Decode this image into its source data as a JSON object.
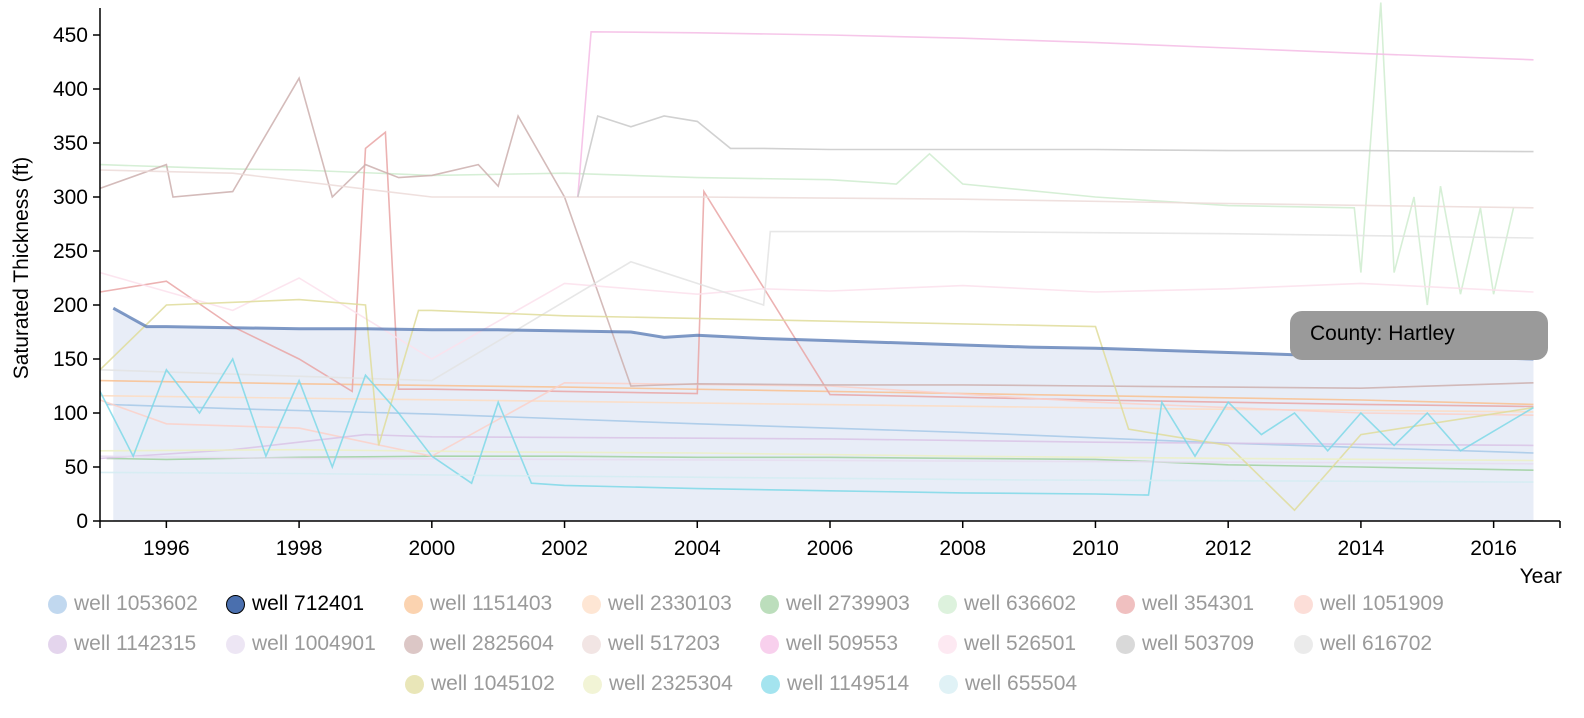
{
  "chart_data": {
    "type": "line",
    "xlabel": "Year",
    "ylabel": "Saturated Thickness (ft)",
    "xlim": [
      1995.0,
      2017.0
    ],
    "ylim": [
      0,
      475
    ],
    "x_ticks": [
      "1996",
      "1998",
      "2000",
      "2002",
      "2004",
      "2006",
      "2008",
      "2010",
      "2012",
      "2014",
      "2016"
    ],
    "y_ticks": [
      "0",
      "50",
      "100",
      "150",
      "200",
      "250",
      "300",
      "350",
      "400",
      "450"
    ],
    "highlighted_series": "well 712401",
    "legend_position": "bottom",
    "series": [
      {
        "name": "well 1053602",
        "color": "#a6c8e8",
        "x": [
          1995.1,
          1997.0,
          2000.0,
          2004.0,
          2008.0,
          2012.0,
          2016.6
        ],
        "values": [
          108,
          104,
          99,
          90,
          82,
          72,
          63
        ]
      },
      {
        "name": "well 712401",
        "color": "#4a6fae",
        "x": [
          1995.2,
          1995.7,
          1996.0,
          1997.0,
          1998.0,
          1999.0,
          2000.0,
          2001.0,
          2002.0,
          2003.0,
          2003.5,
          2004.0,
          2005.0,
          2006.0,
          2007.0,
          2008.0,
          2009.0,
          2010.0,
          2011.0,
          2012.0,
          2013.0,
          2014.0,
          2015.0,
          2016.0,
          2016.6
        ],
        "values": [
          197,
          180,
          180,
          179,
          178,
          178,
          177,
          177,
          176,
          175,
          170,
          172,
          169,
          167,
          165,
          163,
          161,
          160,
          158,
          156,
          154,
          153,
          152,
          151,
          150
        ]
      },
      {
        "name": "well 1151403",
        "color": "#f9c08f",
        "x": [
          1995.0,
          1998.0,
          2002.0,
          2006.0,
          2010.0,
          2014.0,
          2016.6
        ],
        "values": [
          130,
          127,
          124,
          120,
          116,
          112,
          108
        ]
      },
      {
        "name": "well 2330103",
        "color": "#fddcc2",
        "x": [
          1995.0,
          1999.0,
          2003.0,
          2007.0,
          2011.0,
          2016.6
        ],
        "values": [
          116,
          113,
          110,
          107,
          104,
          101
        ]
      },
      {
        "name": "well 2739903",
        "color": "#9fd09f",
        "x": [
          1995.1,
          1996.0,
          1998.0,
          2000.0,
          2002.0,
          2004.0,
          2006.0,
          2008.0,
          2010.0,
          2012.0,
          2014.0,
          2016.6
        ],
        "values": [
          58,
          57,
          59,
          60,
          60,
          59,
          59,
          58,
          57,
          52,
          50,
          47
        ]
      },
      {
        "name": "well 636602",
        "color": "#cfeccf",
        "x": [
          1995.0,
          1996.0,
          1997.0,
          1998.0,
          2000.0,
          2002.0,
          2004.0,
          2006.0,
          2007.0,
          2007.5,
          2008.0,
          2010.0,
          2012.0,
          2013.9,
          2014.0,
          2014.3,
          2014.5,
          2014.8,
          2015.0,
          2015.2,
          2015.5,
          2015.8,
          2016.0,
          2016.3
        ],
        "values": [
          330,
          328,
          326,
          325,
          320,
          322,
          318,
          316,
          312,
          340,
          312,
          300,
          292,
          290,
          230,
          480,
          230,
          300,
          200,
          310,
          210,
          290,
          210,
          290
        ]
      },
      {
        "name": "well 354301",
        "color": "#e9a5a5",
        "x": [
          1995.0,
          1996.0,
          1997.0,
          1998.0,
          1998.8,
          1999.0,
          1999.3,
          1999.5,
          2000.0,
          2002.0,
          2004.0,
          2004.1,
          2006.0,
          2010.0,
          2014.0,
          2016.6
        ],
        "values": [
          212,
          222,
          180,
          150,
          120,
          345,
          360,
          122,
          122,
          120,
          118,
          305,
          117,
          112,
          108,
          106
        ]
      },
      {
        "name": "well 1051909",
        "color": "#fbd0c8",
        "x": [
          1995.0,
          1996.0,
          1998.0,
          2000.0,
          2002.0,
          2006.0,
          2010.0,
          2014.0,
          2016.6
        ],
        "values": [
          112,
          90,
          86,
          60,
          128,
          125,
          110,
          100,
          98
        ]
      },
      {
        "name": "well 1142315",
        "color": "#d9c3e6",
        "x": [
          1995.0,
          1997.0,
          1999.0,
          2000.0,
          2003.0,
          2006.0,
          2010.0,
          2014.0,
          2016.6
        ],
        "values": [
          58,
          66,
          80,
          78,
          77,
          76,
          73,
          71,
          70
        ]
      },
      {
        "name": "well 1004901",
        "color": "#e6dcf0",
        "x": [
          1995.0,
          1998.0,
          2002.0,
          2006.0,
          2010.0,
          2014.0,
          2016.6
        ],
        "values": [
          60,
          58,
          57,
          56,
          55,
          54,
          53
        ]
      },
      {
        "name": "well 2825604",
        "color": "#cdafae",
        "x": [
          1995.0,
          1996.0,
          1996.1,
          1997.0,
          1998.0,
          1998.5,
          1999.0,
          1999.5,
          2000.0,
          2000.7,
          2001.0,
          2001.3,
          2002.0,
          2003.0,
          2004.0,
          2006.0,
          2008.0,
          2010.0,
          2012.0,
          2014.0,
          2016.6
        ],
        "values": [
          308,
          330,
          300,
          305,
          410,
          300,
          330,
          318,
          320,
          330,
          310,
          375,
          300,
          125,
          127,
          126,
          126,
          125,
          124,
          123,
          128
        ]
      },
      {
        "name": "well 517203",
        "color": "#ecdad8",
        "x": [
          1995.0,
          1997.0,
          2000.0,
          2001.0,
          2004.0,
          2008.0,
          2012.0,
          2016.6
        ],
        "values": [
          325,
          322,
          300,
          300,
          300,
          298,
          294,
          290
        ]
      },
      {
        "name": "well 509553",
        "color": "#f5bce5",
        "x": [
          2002.2,
          2002.4,
          2004.0,
          2006.0,
          2008.0,
          2010.0,
          2012.0,
          2014.0,
          2016.6
        ],
        "values": [
          300,
          453,
          452,
          450,
          447,
          443,
          438,
          433,
          427
        ]
      },
      {
        "name": "well 526501",
        "color": "#fce0ec",
        "x": [
          1995.0,
          1997.0,
          1998.0,
          2000.0,
          2002.0,
          2004.0,
          2005.0,
          2006.0,
          2008.0,
          2010.0,
          2012.0,
          2014.0,
          2016.6
        ],
        "values": [
          230,
          195,
          225,
          150,
          220,
          210,
          215,
          213,
          218,
          212,
          215,
          220,
          212
        ]
      },
      {
        "name": "well 503709",
        "color": "#c9c9c9",
        "x": [
          2002.2,
          2002.5,
          2003.0,
          2003.5,
          2004.0,
          2004.5,
          2005.0,
          2006.0,
          2008.0,
          2010.0,
          2012.0,
          2014.0,
          2016.6
        ],
        "values": [
          300,
          375,
          365,
          375,
          370,
          345,
          345,
          344,
          344,
          344,
          343,
          343,
          342
        ]
      },
      {
        "name": "well 616702",
        "color": "#e3e3e3",
        "x": [
          1995.0,
          2000.0,
          2003.0,
          2005.0,
          2005.1,
          2008.0,
          2012.0,
          2016.6
        ],
        "values": [
          140,
          130,
          240,
          200,
          268,
          268,
          266,
          262
        ]
      },
      {
        "name": "well 1045102",
        "color": "#dfdc9a",
        "x": [
          1995.0,
          1996.0,
          1998.0,
          1999.0,
          1999.2,
          1999.8,
          2000.0,
          2002.0,
          2006.0,
          2010.0,
          2010.5,
          2012.0,
          2013.0,
          2014.0,
          2016.6
        ],
        "values": [
          140,
          200,
          205,
          200,
          70,
          195,
          195,
          190,
          185,
          180,
          85,
          70,
          10,
          80,
          105
        ]
      },
      {
        "name": "well 2325304",
        "color": "#ecf0c4",
        "x": [
          1995.0,
          1998.0,
          2001.0,
          2004.0,
          2008.0,
          2012.0,
          2016.6
        ],
        "values": [
          65,
          66,
          64,
          63,
          60,
          58,
          56
        ]
      },
      {
        "name": "well 1149514",
        "color": "#7ed8e8",
        "x": [
          1995.0,
          1995.5,
          1996.0,
          1996.5,
          1997.0,
          1997.5,
          1998.0,
          1998.5,
          1999.0,
          1999.5,
          2000.0,
          2000.6,
          2001.0,
          2001.5,
          2002.0,
          2004.0,
          2006.0,
          2008.0,
          2010.0,
          2010.8,
          2011.0,
          2011.5,
          2012.0,
          2012.5,
          2013.0,
          2013.5,
          2014.0,
          2014.5,
          2015.0,
          2015.5,
          2016.6
        ],
        "values": [
          120,
          60,
          140,
          100,
          150,
          60,
          130,
          50,
          135,
          100,
          60,
          35,
          110,
          35,
          33,
          30,
          28,
          26,
          25,
          24,
          110,
          60,
          110,
          80,
          100,
          65,
          100,
          70,
          100,
          65,
          105
        ]
      },
      {
        "name": "well 655504",
        "color": "#d3ecf2",
        "x": [
          1995.0,
          1998.0,
          2001.0,
          2005.0,
          2009.0,
          2013.0,
          2016.6
        ],
        "values": [
          45,
          44,
          42,
          40,
          38,
          37,
          36
        ]
      }
    ],
    "tooltip": "County: Hartley"
  }
}
